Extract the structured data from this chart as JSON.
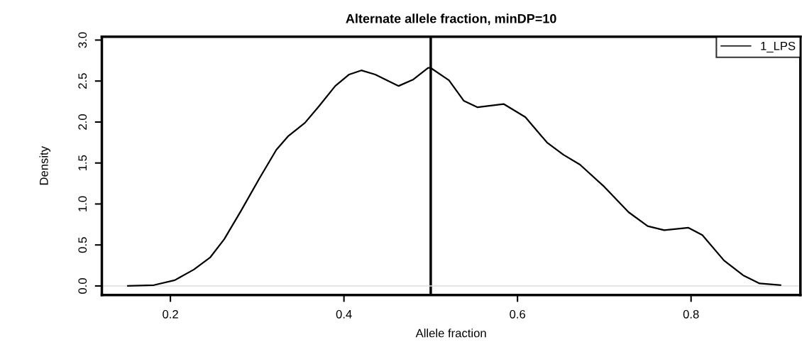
{
  "chart_data": {
    "type": "line",
    "title": "Alternate allele fraction, minDP=10",
    "xlabel": "Allele fraction",
    "ylabel": "Density",
    "series": [
      {
        "name": "1_LPS",
        "color": "#000000",
        "x": [
          0.151,
          0.181,
          0.205,
          0.227,
          0.246,
          0.262,
          0.281,
          0.303,
          0.322,
          0.336,
          0.355,
          0.371,
          0.39,
          0.406,
          0.42,
          0.436,
          0.463,
          0.48,
          0.497,
          0.5,
          0.521,
          0.538,
          0.554,
          0.584,
          0.609,
          0.634,
          0.653,
          0.672,
          0.7,
          0.728,
          0.75,
          0.769,
          0.797,
          0.813,
          0.838,
          0.86,
          0.879,
          0.903
        ],
        "values": [
          0.0,
          0.01,
          0.07,
          0.2,
          0.35,
          0.57,
          0.91,
          1.32,
          1.66,
          1.83,
          1.99,
          2.19,
          2.44,
          2.58,
          2.63,
          2.58,
          2.44,
          2.52,
          2.66,
          2.66,
          2.51,
          2.26,
          2.18,
          2.22,
          2.06,
          1.75,
          1.6,
          1.48,
          1.21,
          0.9,
          0.73,
          0.68,
          0.71,
          0.62,
          0.31,
          0.13,
          0.03,
          0.01
        ]
      }
    ],
    "xlim": [
      0.121,
      0.926
    ],
    "ylim": [
      -0.11,
      3.04
    ],
    "xticks": [
      0.2,
      0.4,
      0.6,
      0.8
    ],
    "yticks": [
      {
        "value": 0,
        "label": "0.0"
      },
      0.5,
      {
        "value": 1,
        "label": "1.0"
      },
      1.5,
      {
        "value": 2,
        "label": "2.0"
      },
      2.5,
      {
        "value": 3,
        "label": "3.0"
      }
    ],
    "ref_lines": [
      {
        "axis": "x",
        "value": 0.5,
        "color": "#000000"
      },
      {
        "axis": "y",
        "value": 0,
        "color": "#dddddd"
      }
    ],
    "grid": false,
    "legend": "top right",
    "line_style": "solid",
    "marker": "none"
  }
}
